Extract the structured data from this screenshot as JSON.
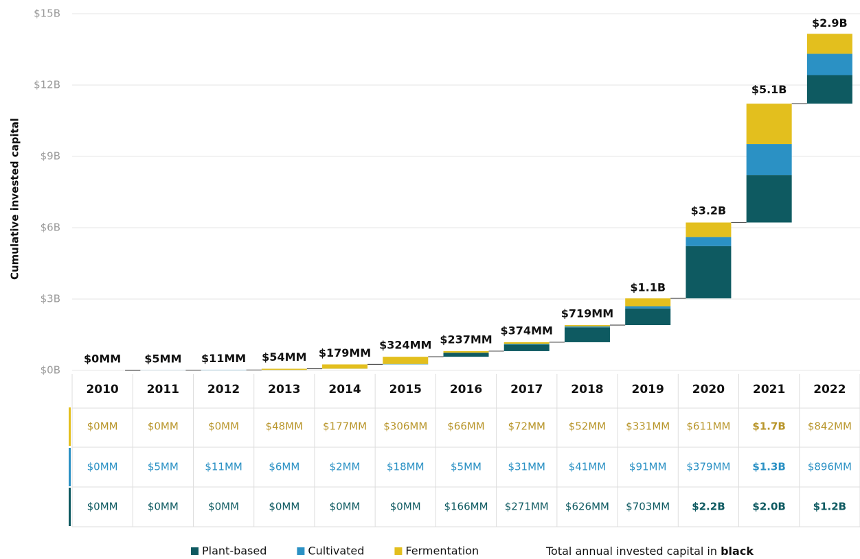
{
  "chart_data": {
    "type": "waterfall-stacked-bar",
    "y_label": "Cumulative invested capital",
    "categories": [
      "2010",
      "2011",
      "2012",
      "2013",
      "2014",
      "2015",
      "2016",
      "2017",
      "2018",
      "2019",
      "2020",
      "2021",
      "2022"
    ],
    "series": [
      {
        "name": "Plant-based",
        "color": "#0e5a61",
        "text_color": "#0e5a61",
        "values": [
          0,
          0,
          0,
          0,
          0,
          0,
          0.166,
          0.271,
          0.626,
          0.703,
          2.2,
          2.0,
          1.2
        ],
        "value_labels": [
          "$0MM",
          "$0MM",
          "$0MM",
          "$0MM",
          "$0MM",
          "$0MM",
          "$166MM",
          "$271MM",
          "$626MM",
          "$703MM",
          "$2.2B",
          "$2.0B",
          "$1.2B"
        ]
      },
      {
        "name": "Cultivated",
        "color": "#2b91c4",
        "text_color": "#2b91c4",
        "values": [
          0,
          0.005,
          0.011,
          0.006,
          0.002,
          0.018,
          0.005,
          0.031,
          0.041,
          0.091,
          0.379,
          1.3,
          0.896
        ],
        "value_labels": [
          "$0MM",
          "$5MM",
          "$11MM",
          "$6MM",
          "$2MM",
          "$18MM",
          "$5MM",
          "$31MM",
          "$41MM",
          "$91MM",
          "$379MM",
          "$1.3B",
          "$896MM"
        ]
      },
      {
        "name": "Fermentation",
        "color": "#e3bf1e",
        "text_color": "#b8952a",
        "values": [
          0,
          0,
          0,
          0.048,
          0.177,
          0.306,
          0.066,
          0.072,
          0.052,
          0.331,
          0.611,
          1.7,
          0.842
        ],
        "value_labels": [
          "$0MM",
          "$0MM",
          "$0MM",
          "$48MM",
          "$177MM",
          "$306MM",
          "$66MM",
          "$72MM",
          "$52MM",
          "$331MM",
          "$611MM",
          "$1.7B",
          "$842MM"
        ]
      }
    ],
    "totals": {
      "values": [
        0,
        0.005,
        0.011,
        0.054,
        0.179,
        0.324,
        0.237,
        0.374,
        0.719,
        1.1,
        3.2,
        5.1,
        2.9
      ],
      "value_labels": [
        "$0MM",
        "$5MM",
        "$11MM",
        "$54MM",
        "$179MM",
        "$324MM",
        "$237MM",
        "$374MM",
        "$719MM",
        "$1.1B",
        "$3.2B",
        "$5.1B",
        "$2.9B"
      ]
    },
    "ylim": [
      0,
      15
    ],
    "yticks": [
      {
        "value": 0,
        "label": "$0B"
      },
      {
        "value": 3,
        "label": "$3B"
      },
      {
        "value": 6,
        "label": "$6B"
      },
      {
        "value": 9,
        "label": "$9B"
      },
      {
        "value": 12,
        "label": "$12B"
      },
      {
        "value": 15,
        "label": "$15B"
      }
    ],
    "grid": true,
    "legend_note": {
      "text": "Total annual invested capital in ",
      "bold": "black"
    }
  }
}
